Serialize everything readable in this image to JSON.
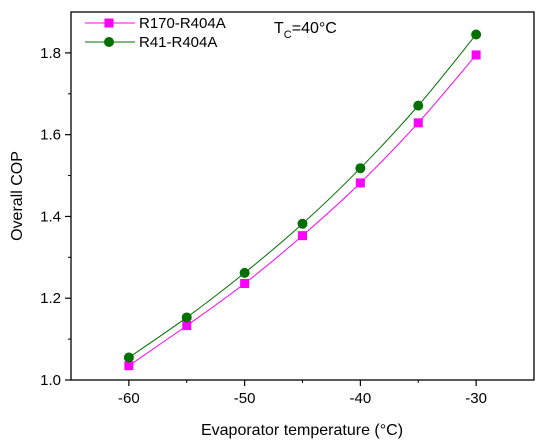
{
  "chart_data": {
    "type": "line",
    "title": "",
    "xlabel": "Evaporator temperature (°C)",
    "ylabel": "Overall COP",
    "xlim": [
      -65,
      -25
    ],
    "ylim": [
      1.0,
      1.9
    ],
    "xticks": [
      -60,
      -50,
      -40,
      -30
    ],
    "xtick_labels": [
      "-60",
      "-50",
      "-40",
      "-30"
    ],
    "yticks": [
      1.0,
      1.2,
      1.4,
      1.6,
      1.8
    ],
    "ytick_labels": [
      "1.0",
      "1.2",
      "1.4",
      "1.6",
      "1.8"
    ],
    "grid": false,
    "legend_position": "top-left",
    "annotation": {
      "main": "T",
      "sub": "C",
      "rest": "=40°C"
    },
    "x": [
      -60,
      -55,
      -50,
      -45,
      -40,
      -35,
      -30
    ],
    "series": [
      {
        "name": "R170-R404A",
        "marker": "square",
        "color": "#ff00ff",
        "values": [
          1.035,
          1.133,
          1.236,
          1.353,
          1.482,
          1.629,
          1.795
        ]
      },
      {
        "name": "R41-R404A",
        "marker": "circle",
        "color": "#007000",
        "values": [
          1.055,
          1.153,
          1.262,
          1.382,
          1.518,
          1.671,
          1.845
        ]
      }
    ]
  }
}
